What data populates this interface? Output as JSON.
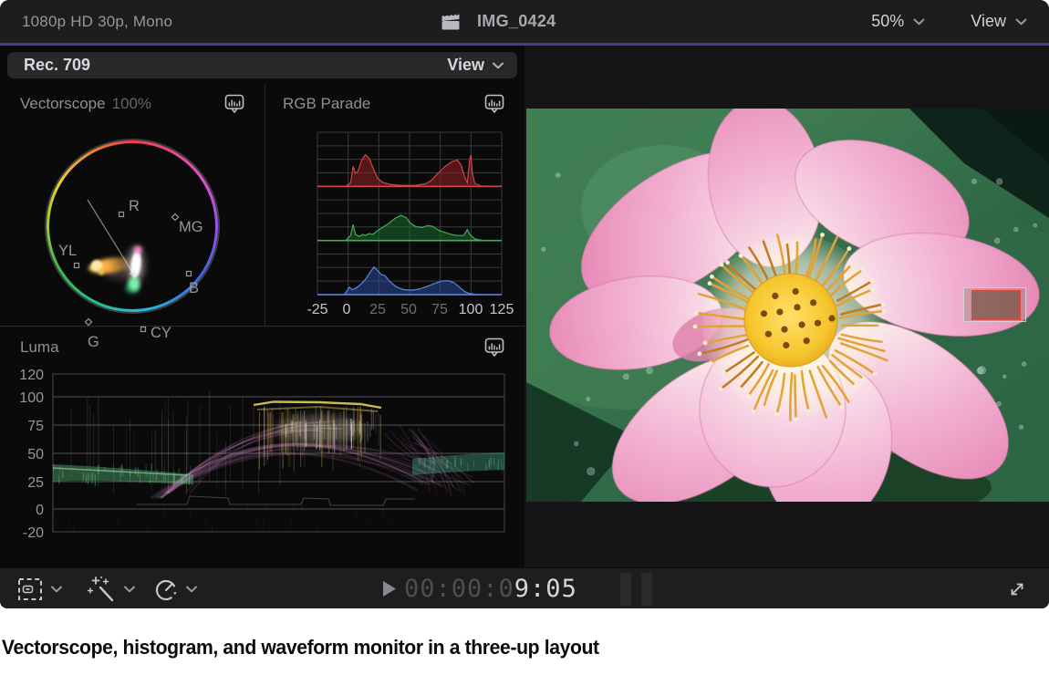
{
  "topbar": {
    "project_info": "1080p HD 30p, Mono",
    "clip_name": "IMG_0424",
    "zoom_level": "50%",
    "view_menu": "View"
  },
  "scopes_header": {
    "colorspace": "Rec. 709",
    "view_menu": "View"
  },
  "vectorscope": {
    "title": "Vectorscope",
    "scale": "100%",
    "graticule_labels": [
      "R",
      "MG",
      "B",
      "CY",
      "G",
      "YL"
    ]
  },
  "rgb_parade": {
    "title": "RGB Parade",
    "x_ticks": [
      "-25",
      "0",
      "25",
      "50",
      "75",
      "100",
      "125"
    ]
  },
  "luma": {
    "title": "Luma",
    "y_ticks": [
      "120",
      "100",
      "75",
      "50",
      "25",
      "0",
      "-20"
    ]
  },
  "transport": {
    "timecode_dim": "00:00:0",
    "timecode_bright": "9:05"
  },
  "caption": "Vectorscope, histogram, and waveform monitor in a three-up layout",
  "colors": {
    "accent_line": "#41418c",
    "red_channel": "#d04545",
    "green_channel": "#3fae57",
    "blue_channel": "#5b84dd"
  },
  "chart_data": [
    {
      "panel": "rgb_parade",
      "type": "area",
      "title": "RGB Parade histogram",
      "x_ticks": [
        -25,
        0,
        25,
        50,
        75,
        100,
        125
      ],
      "series": [
        {
          "name": "red",
          "color": "#d04545",
          "fill": "rgba(150,35,40,0.55)",
          "points": [
            [
              -25,
              0
            ],
            [
              -2,
              0
            ],
            [
              2,
              0.07
            ],
            [
              4,
              0.4
            ],
            [
              6,
              0.26
            ],
            [
              8,
              0.3
            ],
            [
              11,
              0.52
            ],
            [
              14,
              0.63
            ],
            [
              17,
              0.56
            ],
            [
              20,
              0.38
            ],
            [
              24,
              0.16
            ],
            [
              28,
              0.08
            ],
            [
              34,
              0.04
            ],
            [
              42,
              0.02
            ],
            [
              55,
              0.02
            ],
            [
              63,
              0.05
            ],
            [
              68,
              0.12
            ],
            [
              73,
              0.26
            ],
            [
              79,
              0.4
            ],
            [
              85,
              0.5
            ],
            [
              89,
              0.52
            ],
            [
              92,
              0.42
            ],
            [
              95,
              0.18
            ],
            [
              97,
              0.07
            ],
            [
              99,
              0.55
            ],
            [
              100,
              0.62
            ],
            [
              101,
              0.28
            ],
            [
              103,
              0.06
            ],
            [
              108,
              0.01
            ],
            [
              125,
              0
            ]
          ]
        },
        {
          "name": "green",
          "color": "#3fae57",
          "fill": "rgba(30,115,50,0.5)",
          "points": [
            [
              -25,
              0
            ],
            [
              -2,
              0
            ],
            [
              2,
              0.1
            ],
            [
              4,
              0.32
            ],
            [
              6,
              0.12
            ],
            [
              9,
              0.08
            ],
            [
              12,
              0.12
            ],
            [
              14,
              0.1
            ],
            [
              17,
              0.14
            ],
            [
              20,
              0.12
            ],
            [
              24,
              0.2
            ],
            [
              28,
              0.26
            ],
            [
              33,
              0.34
            ],
            [
              38,
              0.44
            ],
            [
              43,
              0.5
            ],
            [
              47,
              0.46
            ],
            [
              51,
              0.34
            ],
            [
              55,
              0.28
            ],
            [
              60,
              0.26
            ],
            [
              65,
              0.3
            ],
            [
              69,
              0.28
            ],
            [
              74,
              0.2
            ],
            [
              79,
              0.16
            ],
            [
              84,
              0.12
            ],
            [
              89,
              0.1
            ],
            [
              94,
              0.1
            ],
            [
              97,
              0.22
            ],
            [
              99,
              0.12
            ],
            [
              103,
              0.03
            ],
            [
              110,
              0
            ],
            [
              125,
              0
            ]
          ]
        },
        {
          "name": "blue",
          "color": "#5b84dd",
          "fill": "rgba(45,80,170,0.5)",
          "points": [
            [
              -25,
              0
            ],
            [
              -3,
              0
            ],
            [
              1,
              0.15
            ],
            [
              3,
              0.1
            ],
            [
              6,
              0.12
            ],
            [
              10,
              0.2
            ],
            [
              14,
              0.3
            ],
            [
              18,
              0.45
            ],
            [
              21,
              0.55
            ],
            [
              24,
              0.48
            ],
            [
              27,
              0.4
            ],
            [
              30,
              0.38
            ],
            [
              34,
              0.26
            ],
            [
              39,
              0.16
            ],
            [
              45,
              0.1
            ],
            [
              52,
              0.09
            ],
            [
              58,
              0.11
            ],
            [
              64,
              0.16
            ],
            [
              70,
              0.22
            ],
            [
              76,
              0.27
            ],
            [
              81,
              0.28
            ],
            [
              86,
              0.24
            ],
            [
              91,
              0.14
            ],
            [
              95,
              0.06
            ],
            [
              99,
              0.02
            ],
            [
              105,
              0
            ],
            [
              125,
              0
            ]
          ]
        }
      ]
    },
    {
      "panel": "luma_waveform",
      "type": "waveform",
      "title": "Luma",
      "y_ticks": [
        120,
        100,
        75,
        50,
        25,
        0,
        -20
      ],
      "features": {
        "left_leaf_band_ire": [
          25,
          40
        ],
        "highlight_plateau_ire": [
          85,
          95
        ],
        "petal_arcs_ire": [
          40,
          80
        ],
        "right_leaf_band_ire": [
          28,
          40
        ]
      }
    },
    {
      "panel": "vectorscope",
      "type": "vectorscope",
      "graticule": [
        "R",
        "MG",
        "B",
        "CY",
        "G",
        "YL"
      ],
      "trace": "yellow-orange streak toward YL, bright white-pink core near center, green lobe below center"
    }
  ]
}
